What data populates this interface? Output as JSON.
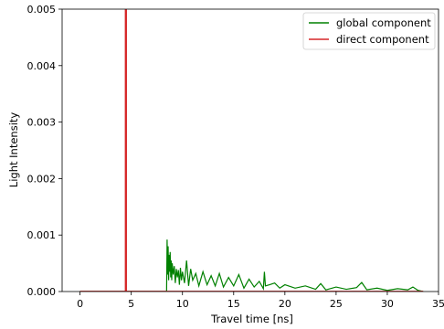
{
  "chart_data": {
    "type": "line",
    "title": "",
    "xlabel": "Travel time [ns]",
    "ylabel": "Light Intensity",
    "xlim": [
      -1.75,
      35
    ],
    "ylim": [
      0,
      0.005
    ],
    "x_ticks": [
      0,
      5,
      10,
      15,
      20,
      25,
      30,
      35
    ],
    "x_tick_labels": [
      "0",
      "5",
      "10",
      "15",
      "20",
      "25",
      "30",
      "35"
    ],
    "y_ticks": [
      0,
      0.001,
      0.002,
      0.003,
      0.004,
      0.005
    ],
    "y_tick_labels": [
      "0.000",
      "0.001",
      "0.002",
      "0.003",
      "0.004",
      "0.005"
    ],
    "grid": false,
    "legend_position": "top-right",
    "series": [
      {
        "name": "global component",
        "color": "#008000",
        "x": [
          0,
          8.45,
          8.5,
          8.55,
          8.6,
          8.65,
          8.7,
          8.75,
          8.8,
          8.85,
          8.9,
          8.95,
          9.0,
          9.1,
          9.2,
          9.3,
          9.4,
          9.5,
          9.6,
          9.7,
          9.8,
          9.9,
          10.0,
          10.2,
          10.4,
          10.6,
          10.8,
          11.0,
          11.3,
          11.6,
          12.0,
          12.4,
          12.8,
          13.2,
          13.6,
          14.0,
          14.5,
          15.0,
          15.5,
          16.0,
          16.5,
          17.0,
          17.5,
          17.9,
          18.0,
          18.1,
          18.5,
          19.0,
          19.5,
          20.0,
          21.0,
          22.0,
          23.0,
          23.5,
          24.0,
          25.0,
          26.0,
          27.0,
          27.5,
          28.0,
          29.0,
          30.0,
          31.0,
          32.0,
          32.5,
          33.0,
          33.5
        ],
        "values": [
          0,
          0,
          0.00092,
          0.0003,
          0.0008,
          0.0002,
          0.00065,
          0.00035,
          0.0007,
          0.00025,
          0.00055,
          0.0002,
          0.0005,
          0.0003,
          0.00045,
          0.00015,
          0.0004,
          0.00025,
          0.00038,
          0.00012,
          0.00042,
          0.0002,
          0.00035,
          0.00015,
          0.00055,
          0.0001,
          0.0004,
          0.0002,
          0.00032,
          0.0001,
          0.00035,
          0.00012,
          0.00028,
          0.0001,
          0.00032,
          8e-05,
          0.00025,
          0.0001,
          0.0003,
          6e-05,
          0.00022,
          8e-05,
          0.00018,
          5e-05,
          0.00035,
          0.0001,
          0.00012,
          0.00015,
          6e-05,
          0.00012,
          6e-05,
          0.0001,
          4e-05,
          0.00014,
          3e-05,
          8e-05,
          4e-05,
          7e-05,
          0.00016,
          3e-05,
          6e-05,
          2e-05,
          5e-05,
          3e-05,
          8e-05,
          2e-05,
          0
        ]
      },
      {
        "name": "direct component",
        "color": "#d62728",
        "x": [
          0,
          4.45,
          4.45,
          4.5,
          4.5,
          33.5
        ],
        "values": [
          0,
          0,
          0.0052,
          0.0052,
          0,
          0
        ]
      }
    ]
  }
}
